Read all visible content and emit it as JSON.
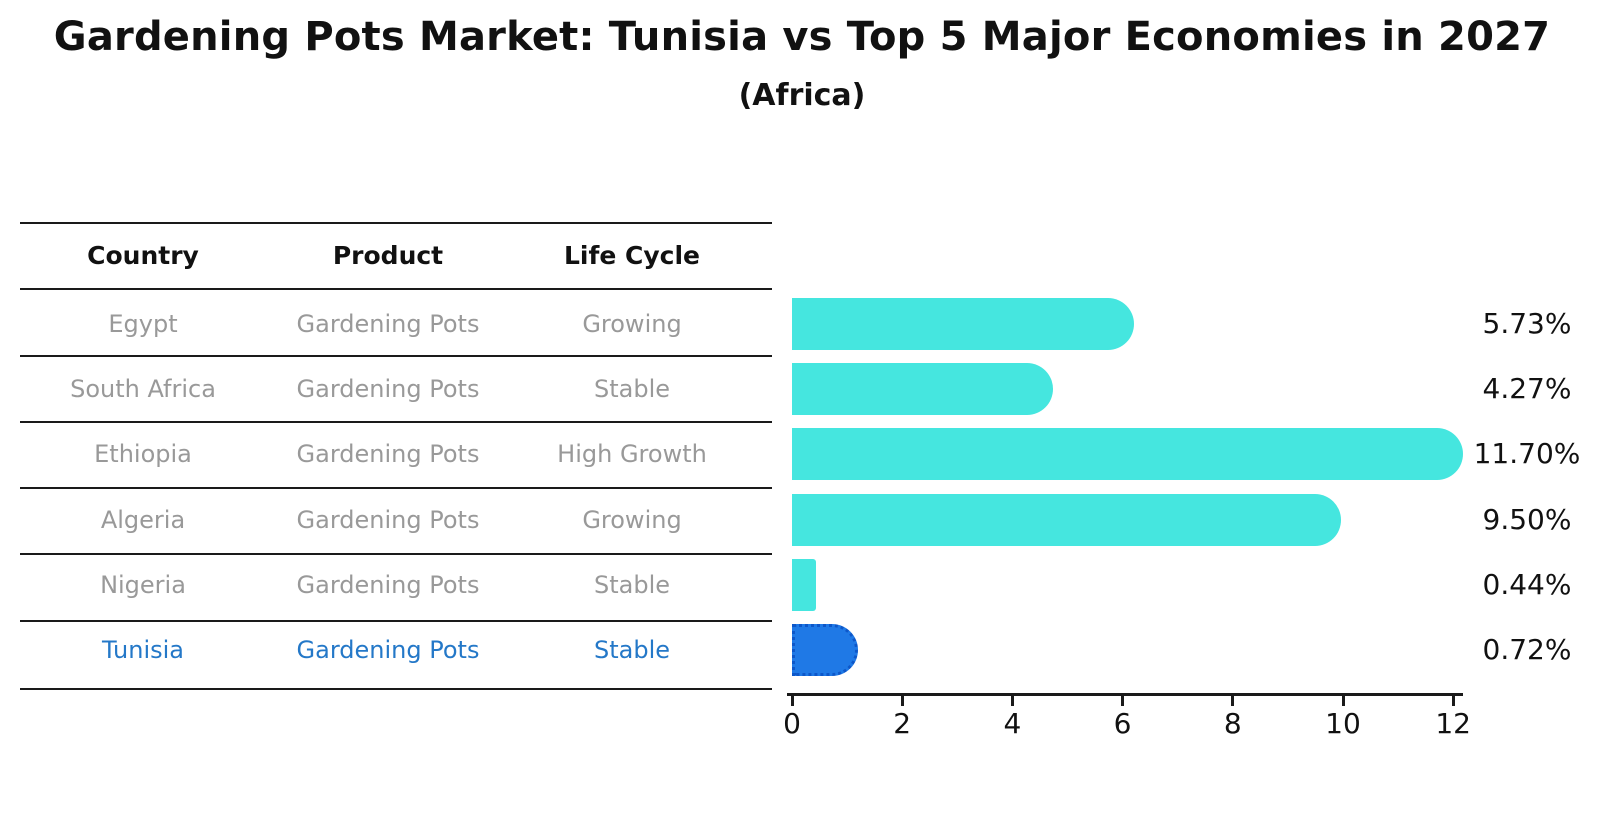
{
  "title": "Gardening Pots Market: Tunisia vs Top 5 Major Economies in 2027",
  "subtitle": "(Africa)",
  "table": {
    "headers": [
      "Country",
      "Product",
      "Life Cycle"
    ],
    "rows": [
      {
        "country": "Egypt",
        "product": "Gardening Pots",
        "life_cycle": "Growing",
        "highlighted": false
      },
      {
        "country": "South Africa",
        "product": "Gardening Pots",
        "life_cycle": "Stable",
        "highlighted": false
      },
      {
        "country": "Ethiopia",
        "product": "Gardening Pots",
        "life_cycle": "High Growth",
        "highlighted": false
      },
      {
        "country": "Algeria",
        "product": "Gardening Pots",
        "life_cycle": "Growing",
        "highlighted": false
      },
      {
        "country": "Nigeria",
        "product": "Gardening Pots",
        "life_cycle": "Stable",
        "highlighted": false
      },
      {
        "country": "Tunisia",
        "product": "Gardening Pots",
        "life_cycle": "Stable",
        "highlighted": true
      }
    ]
  },
  "chart_data": {
    "type": "bar",
    "orientation": "horizontal",
    "title": "Gardening Pots Market: Tunisia vs Top 5 Major Economies in 2027 (Africa)",
    "categories": [
      "Egypt",
      "South Africa",
      "Ethiopia",
      "Algeria",
      "Nigeria",
      "Tunisia"
    ],
    "values": [
      5.73,
      4.27,
      11.7,
      9.5,
      0.44,
      0.72
    ],
    "value_labels": [
      "5.73%",
      "4.27%",
      "11.70%",
      "9.50%",
      "0.44%",
      "0.72%"
    ],
    "xlabel": "",
    "ylabel": "",
    "xlim": [
      0,
      12
    ],
    "xticks": [
      0,
      2,
      4,
      6,
      8,
      10,
      12
    ],
    "grid": false,
    "legend": null,
    "highlight_index": 5
  },
  "colors": {
    "bar": "#45e6df",
    "highlight_bar": "#1f79e6",
    "highlight_border": "#0d57c9",
    "highlight_text": "#2478c8",
    "row_text": "#999999",
    "axis": "#1a1a1a"
  }
}
